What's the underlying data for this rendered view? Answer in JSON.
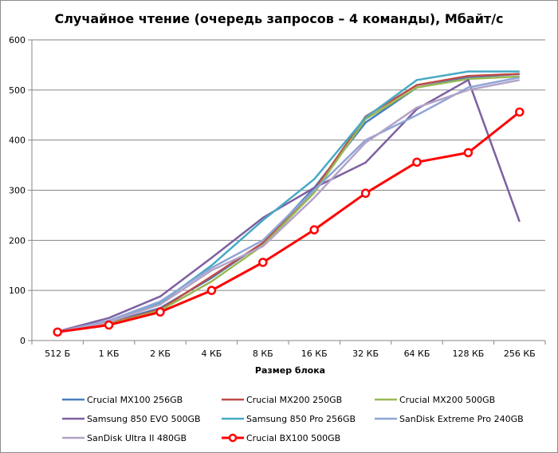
{
  "chart_data": {
    "type": "line",
    "title": "Случайное чтение (очередь запросов – 4 команды), Мбайт/с",
    "xlabel": "Размер блока",
    "ylabel": "",
    "ylim": [
      0,
      600
    ],
    "yticks": [
      0,
      100,
      200,
      300,
      400,
      500,
      600
    ],
    "grid": true,
    "legend_position": "bottom",
    "categories": [
      "512 Б",
      "1 КБ",
      "2 КБ",
      "4 КБ",
      "8 КБ",
      "16 КБ",
      "32 КБ",
      "64 КБ",
      "128 КБ",
      "256 КБ"
    ],
    "series": [
      {
        "name": "Crucial MX100 256GB",
        "color": "#4a7ebb",
        "values": [
          17,
          35,
          65,
          125,
          195,
          305,
          435,
          505,
          525,
          532
        ]
      },
      {
        "name": "Crucial MX200 250GB",
        "color": "#be4b48",
        "values": [
          17,
          34,
          62,
          128,
          195,
          300,
          447,
          510,
          528,
          532
        ]
      },
      {
        "name": "Crucial MX200 500GB",
        "color": "#98b954",
        "values": [
          17,
          33,
          60,
          118,
          190,
          295,
          442,
          505,
          522,
          527
        ]
      },
      {
        "name": "Samsung 850 EVO 500GB",
        "color": "#7d60a0",
        "values": [
          18,
          45,
          88,
          165,
          245,
          305,
          355,
          462,
          520,
          237
        ]
      },
      {
        "name": "Samsung 850 Pro 256GB",
        "color": "#46aac5",
        "values": [
          17,
          38,
          75,
          150,
          240,
          322,
          445,
          520,
          537,
          537
        ]
      },
      {
        "name": "SanDisk Extreme Pro 240GB",
        "color": "#8ea5d6",
        "values": [
          17,
          40,
          78,
          145,
          200,
          300,
          400,
          450,
          505,
          525
        ]
      },
      {
        "name": "SanDisk Ultra II 480GB",
        "color": "#b3a2c7",
        "values": [
          17,
          37,
          72,
          140,
          188,
          285,
          395,
          465,
          500,
          520
        ]
      },
      {
        "name": "Crucial BX100 500GB",
        "color": "#ff0000",
        "marker": "circle",
        "values": [
          17,
          31,
          57,
          100,
          156,
          221,
          294,
          356,
          375,
          456
        ]
      }
    ]
  }
}
